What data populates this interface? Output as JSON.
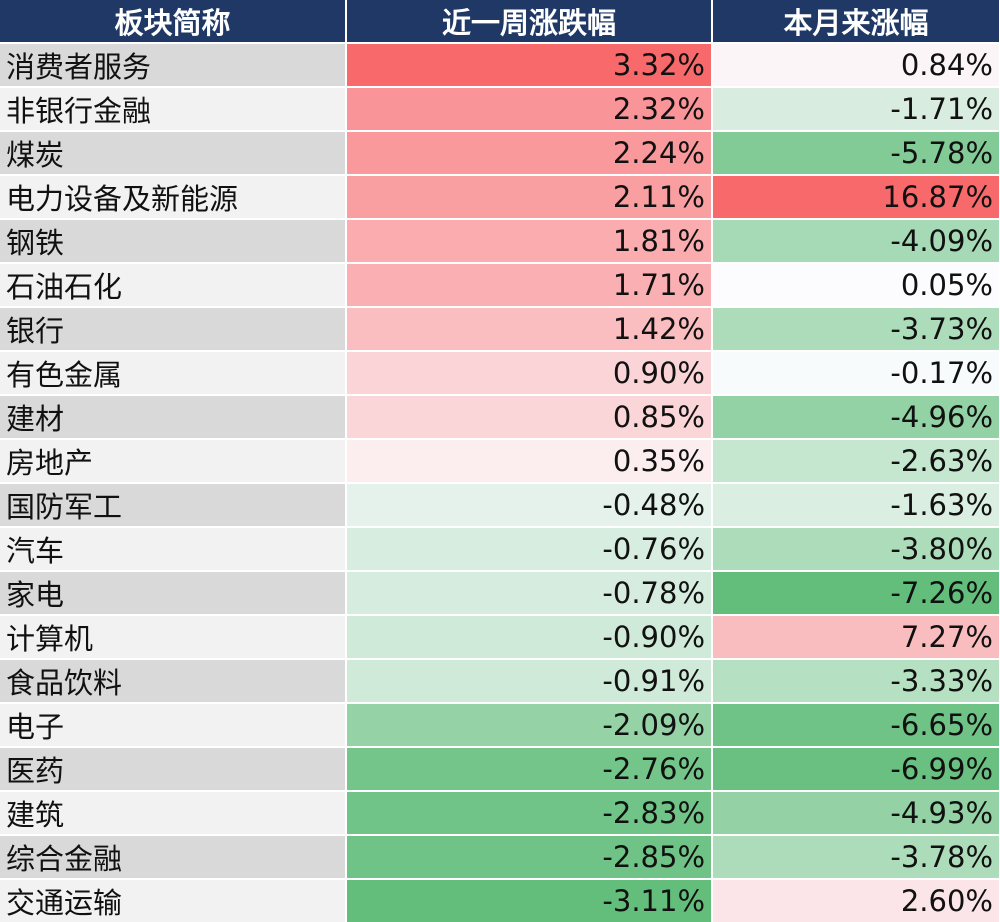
{
  "chart_data": {
    "type": "table",
    "columns": [
      "板块简称",
      "近一周涨跌幅",
      "本月来涨幅"
    ],
    "rows": [
      {
        "name": "消费者服务",
        "week": 3.32,
        "month": 0.84,
        "week_text": "3.32%",
        "month_text": "0.84%"
      },
      {
        "name": "非银行金融",
        "week": 2.32,
        "month": -1.71,
        "week_text": "2.32%",
        "month_text": "-1.71%"
      },
      {
        "name": "煤炭",
        "week": 2.24,
        "month": -5.78,
        "week_text": "2.24%",
        "month_text": "-5.78%"
      },
      {
        "name": "电力设备及新能源",
        "week": 2.11,
        "month": 16.87,
        "week_text": "2.11%",
        "month_text": "16.87%"
      },
      {
        "name": "钢铁",
        "week": 1.81,
        "month": -4.09,
        "week_text": "1.81%",
        "month_text": "-4.09%"
      },
      {
        "name": "石油石化",
        "week": 1.71,
        "month": 0.05,
        "week_text": "1.71%",
        "month_text": "0.05%"
      },
      {
        "name": "银行",
        "week": 1.42,
        "month": -3.73,
        "week_text": "1.42%",
        "month_text": "-3.73%"
      },
      {
        "name": "有色金属",
        "week": 0.9,
        "month": -0.17,
        "week_text": "0.90%",
        "month_text": "-0.17%"
      },
      {
        "name": "建材",
        "week": 0.85,
        "month": -4.96,
        "week_text": "0.85%",
        "month_text": "-4.96%"
      },
      {
        "name": "房地产",
        "week": 0.35,
        "month": -2.63,
        "week_text": "0.35%",
        "month_text": "-2.63%"
      },
      {
        "name": "国防军工",
        "week": -0.48,
        "month": -1.63,
        "week_text": "-0.48%",
        "month_text": "-1.63%"
      },
      {
        "name": "汽车",
        "week": -0.76,
        "month": -3.8,
        "week_text": "-0.76%",
        "month_text": "-3.80%"
      },
      {
        "name": "家电",
        "week": -0.78,
        "month": -7.26,
        "week_text": "-0.78%",
        "month_text": "-7.26%"
      },
      {
        "name": "计算机",
        "week": -0.9,
        "month": 7.27,
        "week_text": "-0.90%",
        "month_text": "7.27%"
      },
      {
        "name": "食品饮料",
        "week": -0.91,
        "month": -3.33,
        "week_text": "-0.91%",
        "month_text": "-3.33%"
      },
      {
        "name": "电子",
        "week": -2.09,
        "month": -6.65,
        "week_text": "-2.09%",
        "month_text": "-6.65%"
      },
      {
        "name": "医药",
        "week": -2.76,
        "month": -6.99,
        "week_text": "-2.76%",
        "month_text": "-6.99%"
      },
      {
        "name": "建筑",
        "week": -2.83,
        "month": -4.93,
        "week_text": "-2.83%",
        "month_text": "-4.93%"
      },
      {
        "name": "综合金融",
        "week": -2.85,
        "month": -3.78,
        "week_text": "-2.85%",
        "month_text": "-3.78%"
      },
      {
        "name": "交通运输",
        "week": -3.11,
        "month": 2.6,
        "week_text": "-3.11%",
        "month_text": "2.60%"
      }
    ],
    "colors": {
      "header_bg": "#1f3866",
      "header_text": "#ffffff",
      "positive_strong": "#f8696b",
      "negative_strong": "#63be7b",
      "neutral": "#fcfcff"
    }
  }
}
